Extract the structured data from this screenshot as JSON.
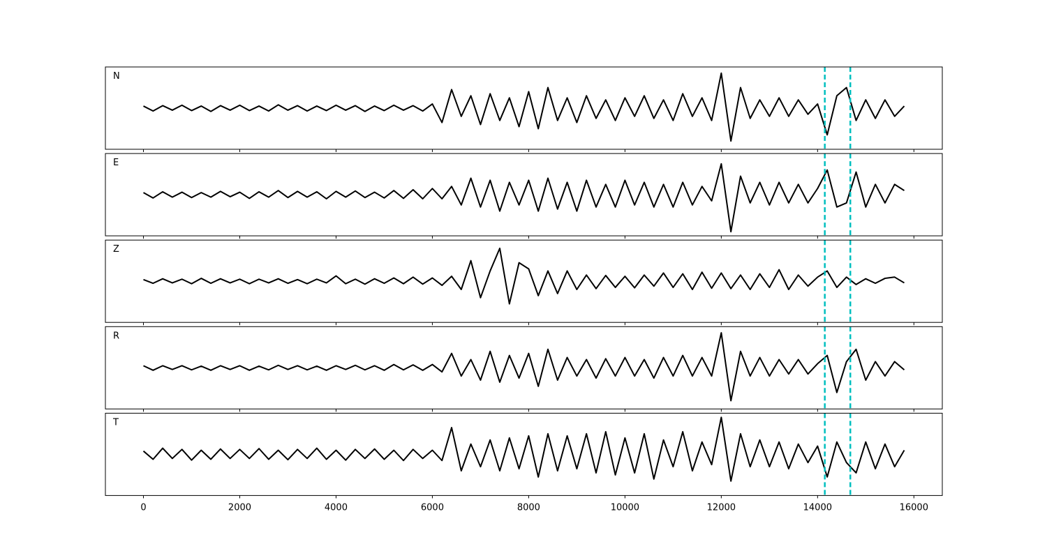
{
  "chart_data": {
    "type": "line",
    "x": [
      0,
      200,
      400,
      600,
      800,
      1000,
      1200,
      1400,
      1600,
      1800,
      2000,
      2200,
      2400,
      2600,
      2800,
      3000,
      3200,
      3400,
      3600,
      3800,
      4000,
      4200,
      4400,
      4600,
      4800,
      5000,
      5200,
      5400,
      5600,
      5800,
      6000,
      6200,
      6400,
      6600,
      6800,
      7000,
      7200,
      7400,
      7600,
      7800,
      8000,
      8200,
      8400,
      8600,
      8800,
      9000,
      9200,
      9400,
      9600,
      9800,
      10000,
      10200,
      10400,
      10600,
      10800,
      11000,
      11200,
      11400,
      11600,
      11800,
      12000,
      12200,
      12400,
      12600,
      12800,
      13000,
      13200,
      13400,
      13600,
      13800,
      14000,
      14200,
      14400,
      14600,
      14800,
      15000,
      15200,
      15400,
      15600,
      15800
    ],
    "xlim": [
      -790,
      16590
    ],
    "xticks": [
      0,
      2000,
      4000,
      6000,
      8000,
      10000,
      12000,
      14000,
      16000
    ],
    "vlines": {
      "x": [
        14150,
        14680
      ],
      "color": "#00bfbf"
    },
    "series": [
      {
        "name": "N",
        "color": "#000000",
        "ylim": [
          -1,
          1
        ],
        "values": [
          0.05,
          -0.07,
          0.06,
          -0.05,
          0.07,
          -0.06,
          0.05,
          -0.08,
          0.06,
          -0.05,
          0.07,
          -0.06,
          0.05,
          -0.07,
          0.08,
          -0.05,
          0.06,
          -0.07,
          0.05,
          -0.06,
          0.07,
          -0.05,
          0.06,
          -0.08,
          0.05,
          -0.06,
          0.07,
          -0.05,
          0.06,
          -0.07,
          0.1,
          -0.35,
          0.45,
          -0.2,
          0.3,
          -0.4,
          0.35,
          -0.3,
          0.25,
          -0.45,
          0.4,
          -0.5,
          0.5,
          -0.3,
          0.25,
          -0.35,
          0.3,
          -0.25,
          0.2,
          -0.3,
          0.25,
          -0.2,
          0.3,
          -0.25,
          0.2,
          -0.3,
          0.35,
          -0.2,
          0.25,
          -0.3,
          0.85,
          -0.8,
          0.5,
          -0.25,
          0.2,
          -0.2,
          0.25,
          -0.2,
          0.2,
          -0.15,
          0.1,
          -0.65,
          0.3,
          0.5,
          -0.3,
          0.2,
          -0.25,
          0.2,
          -0.2,
          0.05
        ]
      },
      {
        "name": "E",
        "color": "#000000",
        "ylim": [
          -1,
          1
        ],
        "values": [
          0.05,
          -0.08,
          0.07,
          -0.06,
          0.06,
          -0.07,
          0.05,
          -0.06,
          0.08,
          -0.05,
          0.06,
          -0.09,
          0.07,
          -0.06,
          0.1,
          -0.07,
          0.08,
          -0.06,
          0.07,
          -0.1,
          0.08,
          -0.06,
          0.09,
          -0.07,
          0.06,
          -0.08,
          0.1,
          -0.09,
          0.12,
          -0.1,
          0.15,
          -0.1,
          0.2,
          -0.25,
          0.4,
          -0.3,
          0.35,
          -0.4,
          0.3,
          -0.25,
          0.35,
          -0.4,
          0.4,
          -0.35,
          0.3,
          -0.4,
          0.35,
          -0.3,
          0.25,
          -0.3,
          0.35,
          -0.25,
          0.3,
          -0.3,
          0.25,
          -0.3,
          0.3,
          -0.25,
          0.2,
          -0.15,
          0.75,
          -0.9,
          0.45,
          -0.2,
          0.3,
          -0.25,
          0.3,
          -0.2,
          0.25,
          -0.2,
          0.15,
          0.6,
          -0.3,
          -0.2,
          0.55,
          -0.3,
          0.25,
          -0.2,
          0.25,
          0.1
        ]
      },
      {
        "name": "Z",
        "color": "#000000",
        "ylim": [
          -1,
          1
        ],
        "values": [
          0.04,
          -0.05,
          0.06,
          -0.04,
          0.05,
          -0.06,
          0.07,
          -0.05,
          0.06,
          -0.04,
          0.05,
          -0.06,
          0.05,
          -0.04,
          0.06,
          -0.05,
          0.04,
          -0.06,
          0.05,
          -0.04,
          0.13,
          -0.06,
          0.05,
          -0.07,
          0.06,
          -0.05,
          0.08,
          -0.06,
          0.1,
          -0.07,
          0.08,
          -0.1,
          0.12,
          -0.2,
          0.5,
          -0.4,
          0.25,
          0.8,
          -0.55,
          0.45,
          0.3,
          -0.35,
          0.25,
          -0.3,
          0.25,
          -0.2,
          0.15,
          -0.18,
          0.14,
          -0.15,
          0.12,
          -0.16,
          0.15,
          -0.12,
          0.2,
          -0.15,
          0.18,
          -0.2,
          0.22,
          -0.17,
          0.2,
          -0.18,
          0.15,
          -0.2,
          0.18,
          -0.15,
          0.28,
          -0.2,
          0.15,
          -0.12,
          0.1,
          0.25,
          -0.15,
          0.1,
          -0.08,
          0.06,
          -0.05,
          0.07,
          0.1,
          -0.04
        ]
      },
      {
        "name": "R",
        "color": "#000000",
        "ylim": [
          -1,
          1
        ],
        "values": [
          0.05,
          -0.06,
          0.05,
          -0.04,
          0.05,
          -0.05,
          0.04,
          -0.06,
          0.05,
          -0.04,
          0.05,
          -0.06,
          0.04,
          -0.05,
          0.06,
          -0.04,
          0.05,
          -0.05,
          0.04,
          -0.06,
          0.05,
          -0.04,
          0.06,
          -0.05,
          0.05,
          -0.06,
          0.08,
          -0.05,
          0.07,
          -0.06,
          0.08,
          -0.1,
          0.35,
          -0.2,
          0.2,
          -0.3,
          0.4,
          -0.35,
          0.3,
          -0.25,
          0.35,
          -0.45,
          0.45,
          -0.3,
          0.25,
          -0.2,
          0.2,
          -0.25,
          0.22,
          -0.2,
          0.25,
          -0.2,
          0.2,
          -0.25,
          0.25,
          -0.2,
          0.3,
          -0.2,
          0.25,
          -0.2,
          0.85,
          -0.8,
          0.4,
          -0.2,
          0.25,
          -0.2,
          0.2,
          -0.15,
          0.2,
          -0.15,
          0.1,
          0.3,
          -0.6,
          0.15,
          0.45,
          -0.3,
          0.15,
          -0.2,
          0.15,
          -0.05
        ]
      },
      {
        "name": "T",
        "color": "#000000",
        "ylim": [
          -1,
          1
        ],
        "values": [
          0.08,
          -0.12,
          0.15,
          -0.1,
          0.12,
          -0.14,
          0.1,
          -0.12,
          0.13,
          -0.1,
          0.12,
          -0.1,
          0.14,
          -0.12,
          0.1,
          -0.13,
          0.12,
          -0.1,
          0.15,
          -0.12,
          0.1,
          -0.14,
          0.12,
          -0.1,
          0.13,
          -0.12,
          0.1,
          -0.15,
          0.12,
          -0.1,
          0.1,
          -0.15,
          0.65,
          -0.4,
          0.25,
          -0.3,
          0.35,
          -0.4,
          0.4,
          -0.35,
          0.45,
          -0.55,
          0.5,
          -0.4,
          0.45,
          -0.35,
          0.5,
          -0.45,
          0.55,
          -0.5,
          0.4,
          -0.45,
          0.5,
          -0.6,
          0.35,
          -0.3,
          0.55,
          -0.4,
          0.3,
          -0.25,
          0.9,
          -0.65,
          0.5,
          -0.3,
          0.35,
          -0.3,
          0.3,
          -0.35,
          0.25,
          -0.2,
          0.2,
          -0.55,
          0.3,
          -0.2,
          -0.45,
          0.3,
          -0.35,
          0.25,
          -0.3,
          0.1
        ]
      }
    ]
  }
}
